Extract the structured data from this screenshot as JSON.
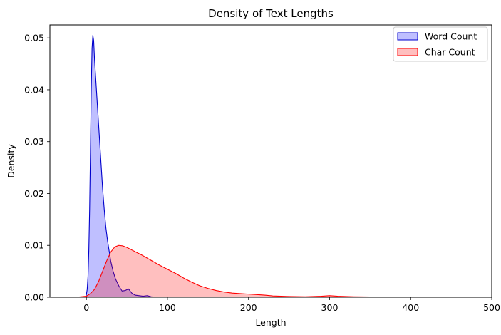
{
  "chart_data": {
    "type": "area",
    "title": "Density of Text Lengths",
    "xlabel": "Length",
    "ylabel": "Density",
    "xlim": [
      -45,
      500
    ],
    "ylim": [
      0,
      0.0525
    ],
    "x_ticks": [
      0,
      100,
      200,
      300,
      400,
      500
    ],
    "x_tick_labels": [
      "0",
      "100",
      "200",
      "300",
      "400",
      "500"
    ],
    "y_ticks": [
      0.0,
      0.01,
      0.02,
      0.03,
      0.04,
      0.05
    ],
    "y_tick_labels": [
      "0.00",
      "0.01",
      "0.02",
      "0.03",
      "0.04",
      "0.05"
    ],
    "grid": false,
    "legend_position": "top-right",
    "series": [
      {
        "name": "Word Count",
        "line_color": "#0000cc",
        "fill_color": "#0000ff",
        "fill_opacity": 0.25,
        "points": [
          [
            -1,
            0.0
          ],
          [
            0,
            0.0005
          ],
          [
            1,
            0.0015
          ],
          [
            2,
            0.004
          ],
          [
            3,
            0.009
          ],
          [
            4,
            0.017
          ],
          [
            5,
            0.028
          ],
          [
            6,
            0.04
          ],
          [
            7,
            0.048
          ],
          [
            8,
            0.0505
          ],
          [
            9,
            0.0495
          ],
          [
            10,
            0.046
          ],
          [
            12,
            0.041
          ],
          [
            14,
            0.036
          ],
          [
            16,
            0.031
          ],
          [
            18,
            0.026
          ],
          [
            20,
            0.021
          ],
          [
            22,
            0.017
          ],
          [
            24,
            0.0135
          ],
          [
            26,
            0.011
          ],
          [
            28,
            0.009
          ],
          [
            30,
            0.007
          ],
          [
            33,
            0.005
          ],
          [
            36,
            0.0035
          ],
          [
            40,
            0.0022
          ],
          [
            44,
            0.0012
          ],
          [
            48,
            0.0013
          ],
          [
            52,
            0.0016
          ],
          [
            56,
            0.0008
          ],
          [
            60,
            0.0004
          ],
          [
            65,
            0.0003
          ],
          [
            70,
            0.0002
          ],
          [
            75,
            0.0003
          ],
          [
            80,
            0.0001
          ],
          [
            85,
            0.0
          ]
        ]
      },
      {
        "name": "Char Count",
        "line_color": "#ff0000",
        "fill_color": "#ff0000",
        "fill_opacity": 0.25,
        "points": [
          [
            -25,
            0.0
          ],
          [
            -10,
            5e-05
          ],
          [
            0,
            0.0002
          ],
          [
            5,
            0.0007
          ],
          [
            10,
            0.0015
          ],
          [
            15,
            0.003
          ],
          [
            20,
            0.005
          ],
          [
            25,
            0.007
          ],
          [
            30,
            0.0087
          ],
          [
            35,
            0.0097
          ],
          [
            40,
            0.01
          ],
          [
            45,
            0.0099
          ],
          [
            50,
            0.0096
          ],
          [
            55,
            0.0092
          ],
          [
            60,
            0.0088
          ],
          [
            70,
            0.008
          ],
          [
            80,
            0.0071
          ],
          [
            90,
            0.0062
          ],
          [
            100,
            0.0054
          ],
          [
            110,
            0.0046
          ],
          [
            120,
            0.0037
          ],
          [
            130,
            0.0029
          ],
          [
            140,
            0.0022
          ],
          [
            150,
            0.0017
          ],
          [
            160,
            0.0013
          ],
          [
            170,
            0.001
          ],
          [
            180,
            0.0008
          ],
          [
            190,
            0.0007
          ],
          [
            200,
            0.0006
          ],
          [
            210,
            0.0005
          ],
          [
            220,
            0.0004
          ],
          [
            230,
            0.00025
          ],
          [
            250,
            0.00015
          ],
          [
            270,
            0.0001
          ],
          [
            290,
            0.0002
          ],
          [
            300,
            0.0003
          ],
          [
            310,
            0.0002
          ],
          [
            330,
            0.0001
          ],
          [
            360,
            5e-05
          ],
          [
            400,
            3e-05
          ],
          [
            440,
            1e-05
          ],
          [
            480,
            0.0
          ]
        ]
      }
    ]
  }
}
